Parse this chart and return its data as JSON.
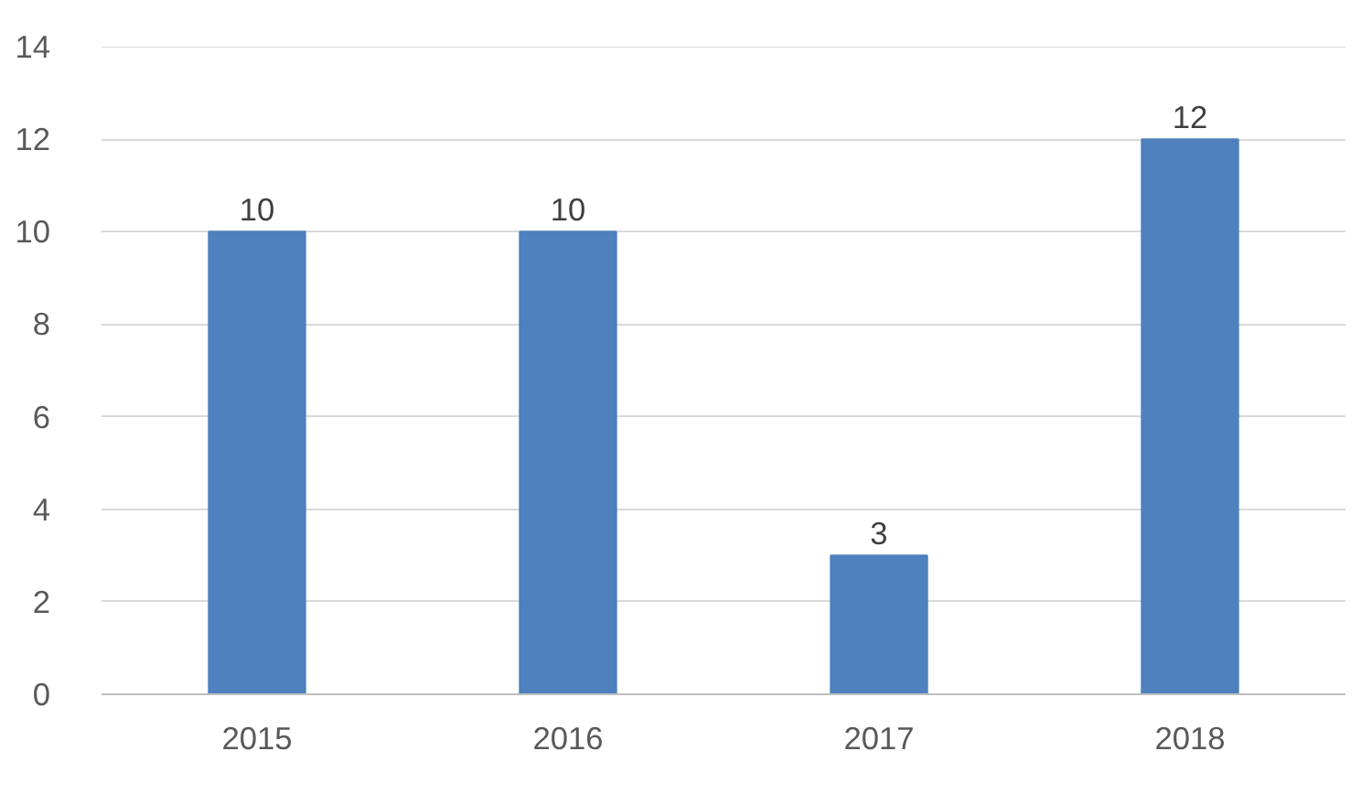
{
  "chart_data": {
    "type": "bar",
    "categories": [
      "2015",
      "2016",
      "2017",
      "2018"
    ],
    "values": [
      10,
      10,
      3,
      12
    ],
    "color": "#4e81bd",
    "ylim": [
      0,
      14
    ],
    "yticks": [
      0,
      2,
      4,
      6,
      8,
      10,
      12,
      14
    ],
    "grid": "y",
    "data_labels": true
  }
}
